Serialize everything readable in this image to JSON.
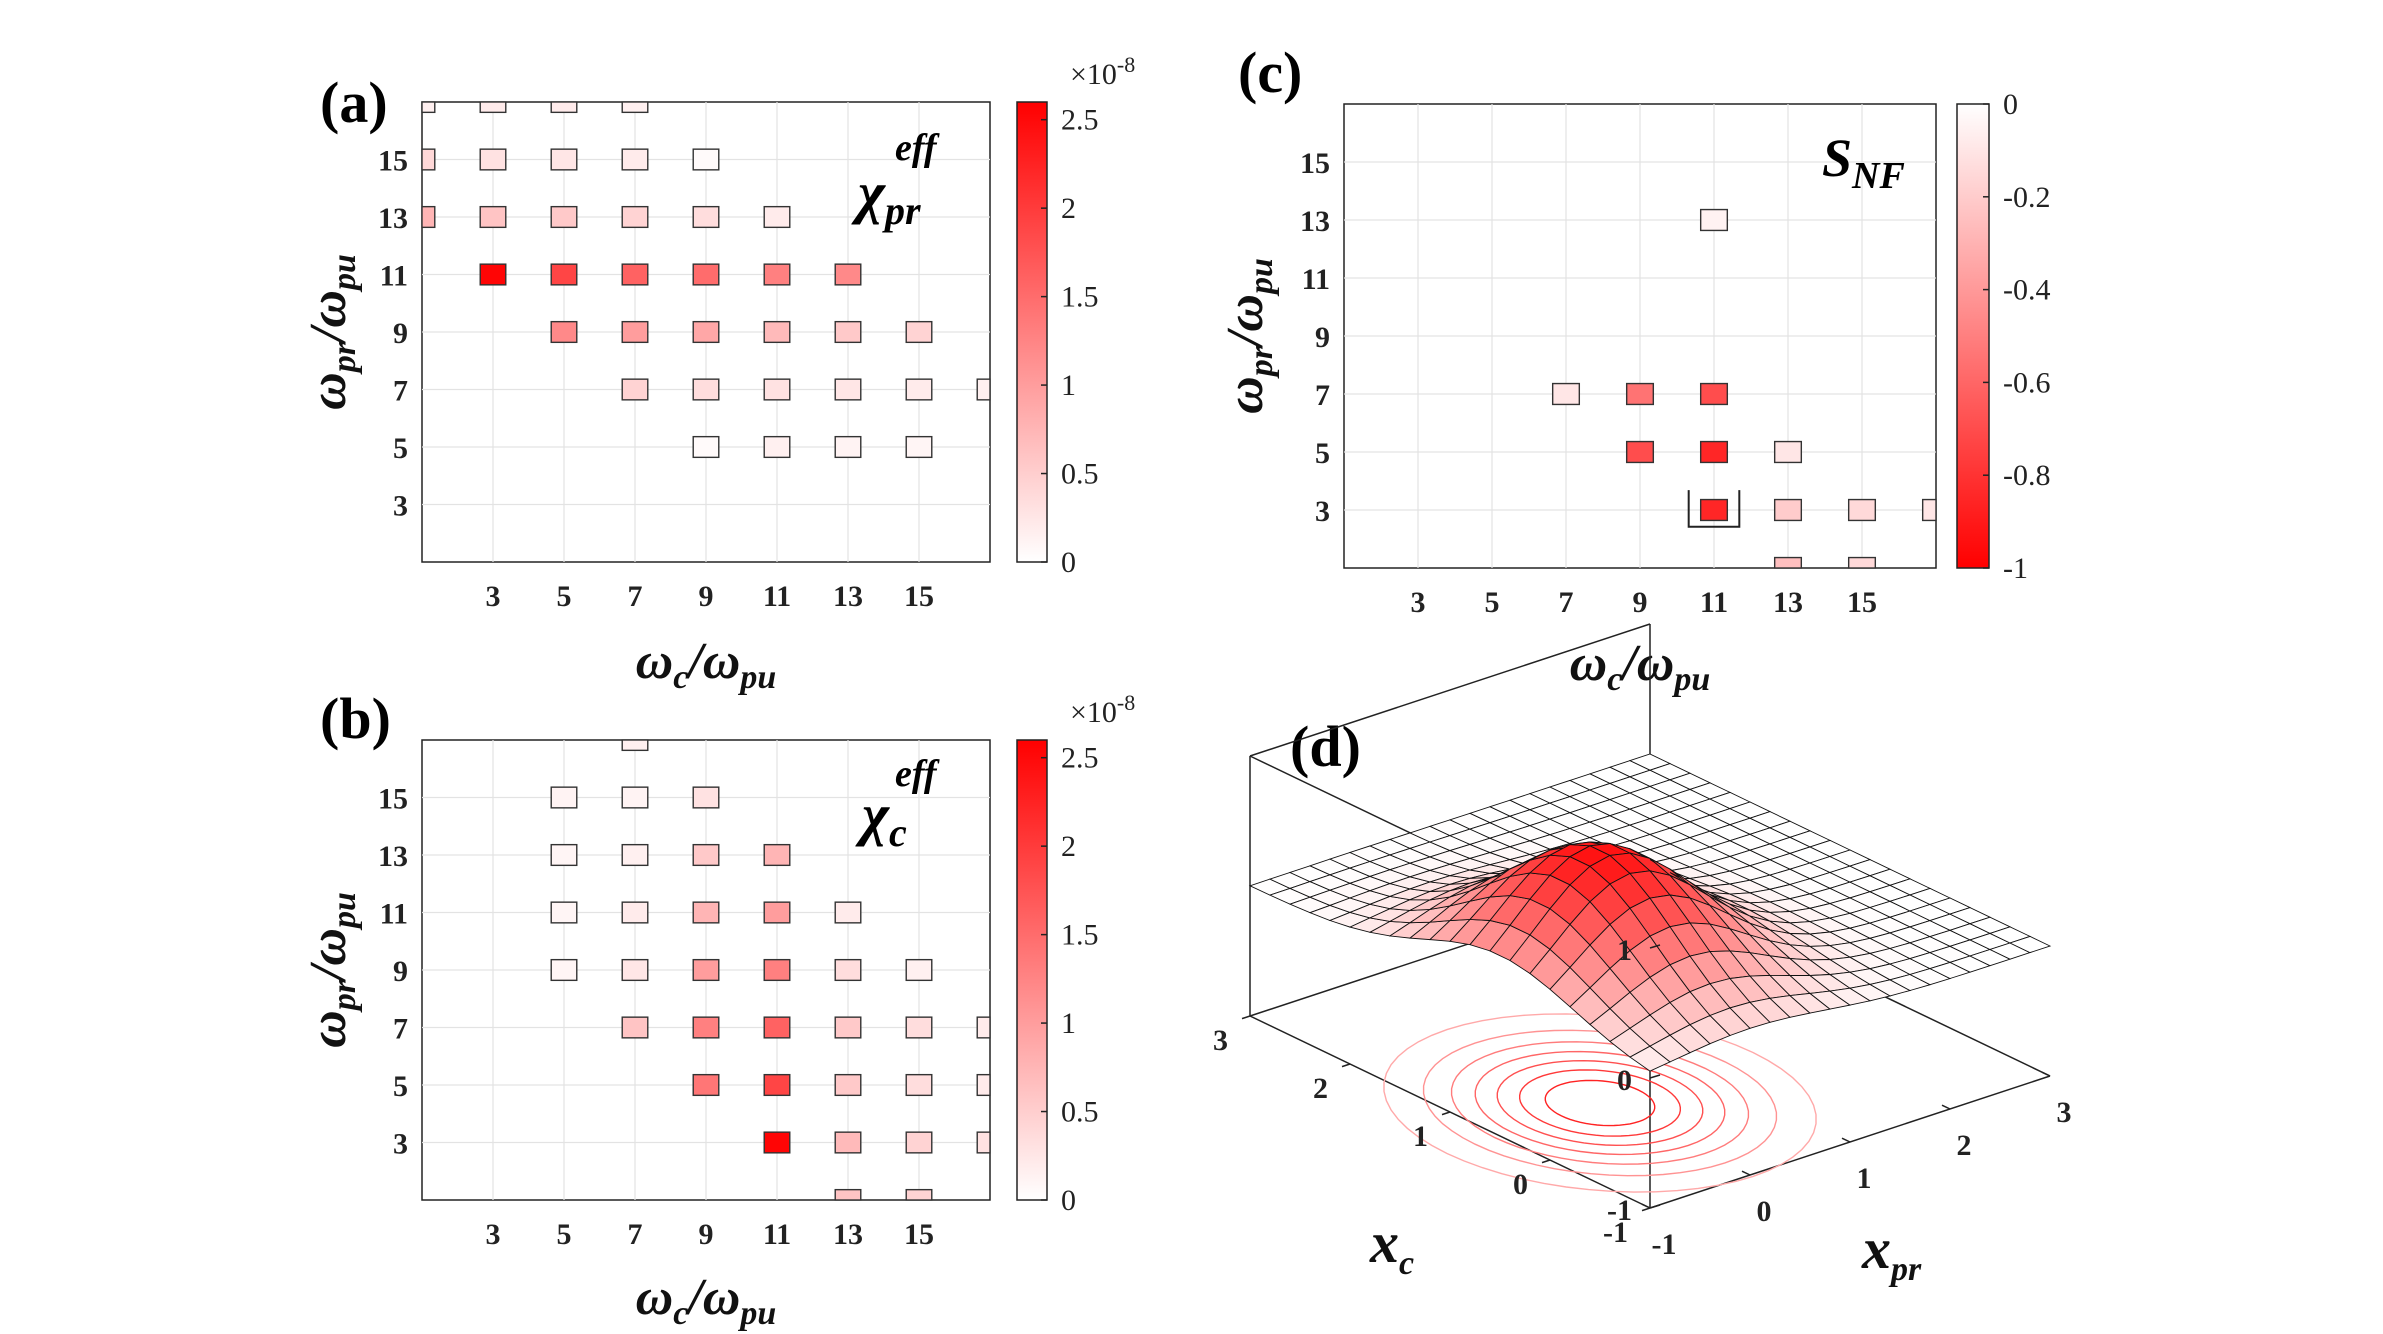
{
  "chart_data": [
    {
      "panel": "(a)",
      "type": "heatmap",
      "quantity": {
        "symbol": "χ",
        "sub": "pr",
        "sup": "eff"
      },
      "xlabel": {
        "base": "ω",
        "sub1": "c",
        "sep": "/ω",
        "sub2": "pu"
      },
      "ylabel": {
        "base": "ω",
        "sub1": "pr",
        "sep": "/ω",
        "sub2": "pu"
      },
      "xlim": [
        1,
        17
      ],
      "ylim": [
        1,
        17
      ],
      "xticks": [
        "3",
        "5",
        "7",
        "9",
        "11",
        "13",
        "15"
      ],
      "yticks": [
        "3",
        "5",
        "7",
        "9",
        "11",
        "13",
        "15"
      ],
      "colorbar": {
        "range": [
          0,
          2.6
        ],
        "ticks": [
          "0",
          "0.5",
          "1",
          "1.5",
          "2",
          "2.5"
        ],
        "exponent": "×10",
        "exponent_power": "-8",
        "scheme": "white-to-red"
      },
      "cells": [
        [
          1,
          17,
          0.15
        ],
        [
          3,
          17,
          0.2
        ],
        [
          5,
          17,
          0.2
        ],
        [
          7,
          17,
          0.15
        ],
        [
          1,
          15,
          0.4
        ],
        [
          3,
          15,
          0.3
        ],
        [
          5,
          15,
          0.25
        ],
        [
          7,
          15,
          0.2
        ],
        [
          9,
          15,
          0.05
        ],
        [
          1,
          13,
          0.75
        ],
        [
          3,
          13,
          0.6
        ],
        [
          5,
          13,
          0.55
        ],
        [
          7,
          13,
          0.45
        ],
        [
          9,
          13,
          0.35
        ],
        [
          11,
          13,
          0.2
        ],
        [
          3,
          11,
          2.55
        ],
        [
          5,
          11,
          1.9
        ],
        [
          7,
          11,
          1.6
        ],
        [
          9,
          11,
          1.5
        ],
        [
          11,
          11,
          1.3
        ],
        [
          13,
          11,
          1.2
        ],
        [
          5,
          9,
          1.2
        ],
        [
          7,
          9,
          1.0
        ],
        [
          9,
          9,
          0.9
        ],
        [
          11,
          9,
          0.7
        ],
        [
          13,
          9,
          0.55
        ],
        [
          15,
          9,
          0.45
        ],
        [
          7,
          7,
          0.45
        ],
        [
          9,
          7,
          0.35
        ],
        [
          11,
          7,
          0.3
        ],
        [
          13,
          7,
          0.25
        ],
        [
          15,
          7,
          0.2
        ],
        [
          17,
          7,
          0.15
        ],
        [
          9,
          5,
          0.05
        ],
        [
          11,
          5,
          0.15
        ],
        [
          13,
          5,
          0.12
        ],
        [
          15,
          5,
          0.1
        ]
      ]
    },
    {
      "panel": "(b)",
      "type": "heatmap",
      "quantity": {
        "symbol": "χ",
        "sub": "c",
        "sup": "eff"
      },
      "xlabel": {
        "base": "ω",
        "sub1": "c",
        "sep": "/ω",
        "sub2": "pu"
      },
      "ylabel": {
        "base": "ω",
        "sub1": "pr",
        "sep": "/ω",
        "sub2": "pu"
      },
      "xlim": [
        1,
        17
      ],
      "ylim": [
        1,
        17
      ],
      "xticks": [
        "3",
        "5",
        "7",
        "9",
        "11",
        "13",
        "15"
      ],
      "yticks": [
        "3",
        "5",
        "7",
        "9",
        "11",
        "13",
        "15"
      ],
      "colorbar": {
        "range": [
          0,
          2.6
        ],
        "ticks": [
          "0",
          "0.5",
          "1",
          "1.5",
          "2",
          "2.5"
        ],
        "exponent": "×10",
        "exponent_power": "-8",
        "scheme": "white-to-red"
      },
      "cells": [
        [
          7,
          17,
          0.15
        ],
        [
          5,
          15,
          0.12
        ],
        [
          7,
          15,
          0.12
        ],
        [
          9,
          15,
          0.3
        ],
        [
          5,
          13,
          0.1
        ],
        [
          7,
          13,
          0.15
        ],
        [
          9,
          13,
          0.55
        ],
        [
          11,
          13,
          0.75
        ],
        [
          5,
          11,
          0.1
        ],
        [
          7,
          11,
          0.2
        ],
        [
          9,
          11,
          0.75
        ],
        [
          11,
          11,
          1.0
        ],
        [
          13,
          11,
          0.2
        ],
        [
          5,
          9,
          0.1
        ],
        [
          7,
          9,
          0.25
        ],
        [
          9,
          9,
          1.0
        ],
        [
          11,
          9,
          1.3
        ],
        [
          13,
          9,
          0.35
        ],
        [
          15,
          9,
          0.15
        ],
        [
          7,
          7,
          0.6
        ],
        [
          9,
          7,
          1.3
        ],
        [
          11,
          7,
          1.6
        ],
        [
          13,
          7,
          0.55
        ],
        [
          15,
          7,
          0.35
        ],
        [
          17,
          7,
          0.2
        ],
        [
          9,
          5,
          1.4
        ],
        [
          11,
          5,
          1.9
        ],
        [
          13,
          5,
          0.55
        ],
        [
          15,
          5,
          0.35
        ],
        [
          17,
          5,
          0.2
        ],
        [
          11,
          3,
          2.55
        ],
        [
          13,
          3,
          0.7
        ],
        [
          15,
          3,
          0.45
        ],
        [
          17,
          3,
          0.3
        ],
        [
          13,
          1,
          0.6
        ],
        [
          15,
          1,
          0.45
        ]
      ]
    },
    {
      "panel": "(c)",
      "type": "heatmap",
      "quantity": {
        "symbol": "S",
        "sub": "NF"
      },
      "xlabel": {
        "base": "ω",
        "sub1": "c",
        "sep": "/ω",
        "sub2": "pu"
      },
      "ylabel": {
        "base": "ω",
        "sub1": "pr",
        "sep": "/ω",
        "sub2": "pu"
      },
      "xlim": [
        1,
        17
      ],
      "ylim": [
        1,
        17
      ],
      "xticks": [
        "3",
        "5",
        "7",
        "9",
        "11",
        "13",
        "15"
      ],
      "yticks": [
        "3",
        "5",
        "7",
        "9",
        "11",
        "13",
        "15"
      ],
      "colorbar": {
        "range": [
          -1,
          0
        ],
        "ticks": [
          "0",
          "-0.2",
          "-0.4",
          "-0.6",
          "-0.8",
          "-1"
        ],
        "scheme": "red-to-white"
      },
      "cells": [
        [
          11,
          13,
          -0.05
        ],
        [
          7,
          7,
          -0.1
        ],
        [
          9,
          7,
          -0.55
        ],
        [
          11,
          7,
          -0.7
        ],
        [
          9,
          5,
          -0.7
        ],
        [
          11,
          5,
          -0.85
        ],
        [
          13,
          5,
          -0.1
        ],
        [
          11,
          3,
          -0.85
        ],
        [
          13,
          3,
          -0.2
        ],
        [
          15,
          3,
          -0.15
        ],
        [
          17,
          3,
          -0.1
        ],
        [
          13,
          1,
          -0.25
        ],
        [
          15,
          1,
          -0.15
        ]
      ],
      "highlight_cell": [
        11,
        3
      ]
    },
    {
      "panel": "(d)",
      "type": "surface3d",
      "xlabel": {
        "base": "x",
        "sub": "pr"
      },
      "ylabel": {
        "base": "x",
        "sub": "c"
      },
      "xticks": [
        "-1",
        "0",
        "1",
        "2",
        "3"
      ],
      "yticks": [
        "-1",
        "0",
        "1",
        "2",
        "3"
      ],
      "zticks": [
        "-1",
        "0",
        "1"
      ],
      "xlim": [
        -1,
        3
      ],
      "ylim": [
        -1,
        3
      ],
      "zlim": [
        -1,
        1
      ],
      "surface": {
        "kind": "gaussian-peak",
        "center": [
          0,
          0.5
        ],
        "amplitude": 0.95,
        "sigma": 0.75,
        "base_level": 0,
        "grid": 21
      },
      "contour_levels": 7
    }
  ]
}
